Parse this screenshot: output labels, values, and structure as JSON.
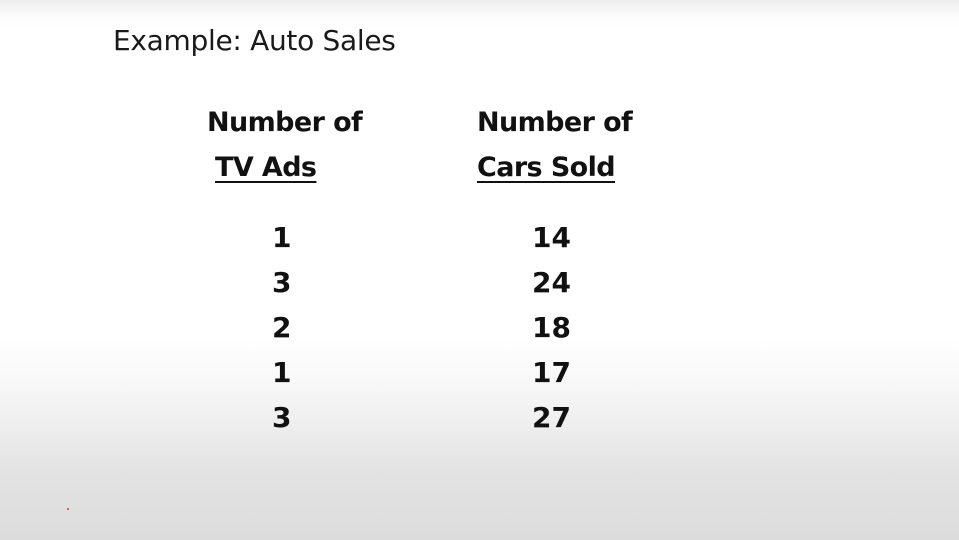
{
  "slide": {
    "title": "Example: Auto Sales"
  },
  "table": {
    "columns": [
      {
        "header_line1": "Number of",
        "header_line2": "TV Ads",
        "values": [
          "1",
          "3",
          "2",
          "1",
          "3"
        ]
      },
      {
        "header_line1": "Number of",
        "header_line2": "Cars Sold",
        "values": [
          "14",
          "24",
          "18",
          "17",
          "27"
        ]
      }
    ]
  },
  "colors": {
    "text": "#111111",
    "background_top": "#ffffff",
    "background_bottom": "#dcdcdc",
    "dot": "#c84040"
  }
}
